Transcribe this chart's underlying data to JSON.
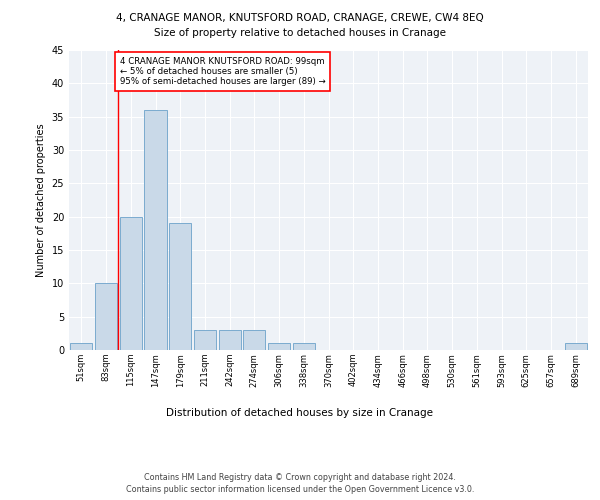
{
  "title_line1": "4, CRANAGE MANOR, KNUTSFORD ROAD, CRANAGE, CREWE, CW4 8EQ",
  "title_line2": "Size of property relative to detached houses in Cranage",
  "xlabel": "Distribution of detached houses by size in Cranage",
  "ylabel": "Number of detached properties",
  "bar_labels": [
    "51sqm",
    "83sqm",
    "115sqm",
    "147sqm",
    "179sqm",
    "211sqm",
    "242sqm",
    "274sqm",
    "306sqm",
    "338sqm",
    "370sqm",
    "402sqm",
    "434sqm",
    "466sqm",
    "498sqm",
    "530sqm",
    "561sqm",
    "593sqm",
    "625sqm",
    "657sqm",
    "689sqm"
  ],
  "bar_values": [
    1,
    10,
    20,
    36,
    19,
    3,
    3,
    3,
    1,
    1,
    0,
    0,
    0,
    0,
    0,
    0,
    0,
    0,
    0,
    0,
    1
  ],
  "bar_color": "#c9d9e8",
  "bar_edge_color": "#7aabcf",
  "annotation_box_text": "4 CRANAGE MANOR KNUTSFORD ROAD: 99sqm\n← 5% of detached houses are smaller (5)\n95% of semi-detached houses are larger (89) →",
  "vline_x": 1.5,
  "ylim": [
    0,
    45
  ],
  "yticks": [
    0,
    5,
    10,
    15,
    20,
    25,
    30,
    35,
    40,
    45
  ],
  "background_color": "#eef2f7",
  "grid_color": "#ffffff",
  "footer_line1": "Contains HM Land Registry data © Crown copyright and database right 2024.",
  "footer_line2": "Contains public sector information licensed under the Open Government Licence v3.0."
}
